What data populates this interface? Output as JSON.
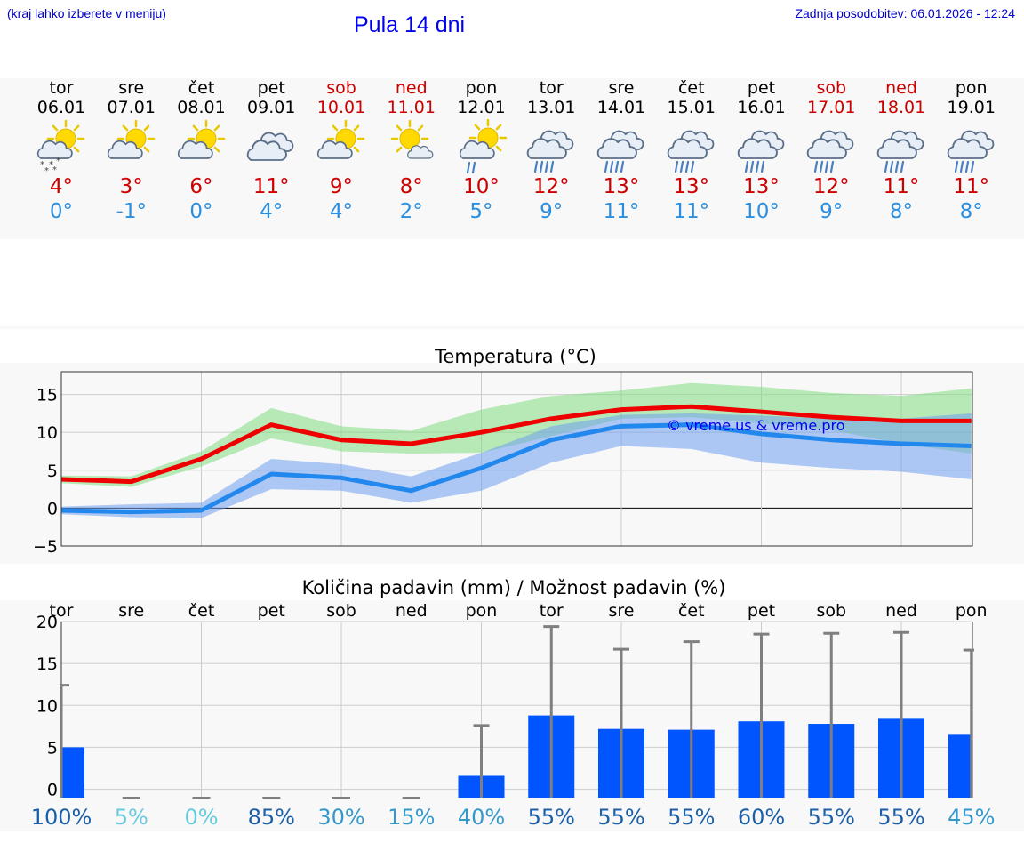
{
  "header": {
    "menu_hint": "(kraj lahko izberete v meniju)",
    "title": "Pula 14 dni",
    "updated": "Zadnja posodobitev: 06.01.2026 - 12:24"
  },
  "days": [
    {
      "name": "tor",
      "date": "06.01",
      "weekend": false,
      "icon": "sun-cloud-snow-icon",
      "tmax": "4°",
      "tmin": "0°"
    },
    {
      "name": "sre",
      "date": "07.01",
      "weekend": false,
      "icon": "sun-cloud-icon",
      "tmax": "3°",
      "tmin": "-1°"
    },
    {
      "name": "čet",
      "date": "08.01",
      "weekend": false,
      "icon": "sun-cloud-icon",
      "tmax": "6°",
      "tmin": "0°"
    },
    {
      "name": "pet",
      "date": "09.01",
      "weekend": false,
      "icon": "cloudy-icon",
      "tmax": "11°",
      "tmin": "4°"
    },
    {
      "name": "sob",
      "date": "10.01",
      "weekend": true,
      "icon": "sun-cloud-icon",
      "tmax": "9°",
      "tmin": "4°"
    },
    {
      "name": "ned",
      "date": "11.01",
      "weekend": true,
      "icon": "sun-small-cloud-icon",
      "tmax": "8°",
      "tmin": "2°"
    },
    {
      "name": "pon",
      "date": "12.01",
      "weekend": false,
      "icon": "sun-cloud-rain-icon",
      "tmax": "10°",
      "tmin": "5°"
    },
    {
      "name": "tor",
      "date": "13.01",
      "weekend": false,
      "icon": "cloud-rain-icon",
      "tmax": "12°",
      "tmin": "9°"
    },
    {
      "name": "sre",
      "date": "14.01",
      "weekend": false,
      "icon": "cloud-rain-icon",
      "tmax": "13°",
      "tmin": "11°"
    },
    {
      "name": "čet",
      "date": "15.01",
      "weekend": false,
      "icon": "cloud-rain-icon",
      "tmax": "13°",
      "tmin": "11°"
    },
    {
      "name": "pet",
      "date": "16.01",
      "weekend": false,
      "icon": "cloud-rain-icon",
      "tmax": "13°",
      "tmin": "10°"
    },
    {
      "name": "sob",
      "date": "17.01",
      "weekend": true,
      "icon": "cloud-rain-icon",
      "tmax": "12°",
      "tmin": "9°"
    },
    {
      "name": "ned",
      "date": "18.01",
      "weekend": true,
      "icon": "cloud-rain-icon",
      "tmax": "11°",
      "tmin": "8°"
    },
    {
      "name": "pon",
      "date": "19.01",
      "weekend": false,
      "icon": "cloud-rain-icon",
      "tmax": "11°",
      "tmin": "8°"
    }
  ],
  "chart_data": [
    {
      "type": "line",
      "title": "Temperatura (°C)",
      "watermark": "© vreme.us & vreme.pro",
      "ylim": [
        -5,
        18
      ],
      "yticks": [
        "15",
        "10",
        "5",
        "0",
        "−5"
      ],
      "ytick_values": [
        15,
        10,
        5,
        0,
        -5
      ],
      "categories": [
        "06.01",
        "07.01",
        "08.01",
        "09.01",
        "10.01",
        "11.01",
        "12.01",
        "13.01",
        "14.01",
        "15.01",
        "16.01",
        "17.01",
        "18.01",
        "19.01"
      ],
      "series": [
        {
          "name": "max",
          "color": "#ee0000",
          "values": [
            3.8,
            3.5,
            6.5,
            11,
            9,
            8.5,
            10,
            11.8,
            13,
            13.4,
            12.7,
            12,
            11.5,
            11.5
          ],
          "band_low": [
            3.3,
            2.8,
            5.5,
            9.2,
            7.5,
            7.2,
            7.3,
            9.5,
            11.8,
            12,
            11.2,
            10.3,
            8.5,
            7.2
          ],
          "band_high": [
            4.3,
            4.2,
            7.5,
            13.2,
            10.8,
            10.2,
            13,
            14.8,
            15.5,
            16.5,
            16,
            15.2,
            14.8,
            15.8
          ],
          "band_color": "#7fdc7f"
        },
        {
          "name": "min",
          "color": "#2288ee",
          "values": [
            -0.3,
            -0.5,
            -0.3,
            4.5,
            4,
            2.3,
            5.3,
            9,
            10.8,
            11,
            9.8,
            9,
            8.5,
            8.2
          ],
          "band_low": [
            -0.8,
            -1.2,
            -1.3,
            2.5,
            2.3,
            0.7,
            2.3,
            6,
            8.2,
            7.8,
            6,
            5.3,
            4.8,
            3.8
          ],
          "band_high": [
            0.2,
            0.5,
            0.7,
            6.5,
            5.8,
            4.2,
            7.3,
            10.8,
            12.3,
            12.5,
            12.2,
            11.8,
            11.8,
            12.5
          ],
          "band_color": "#6f9ff0"
        }
      ]
    },
    {
      "type": "bar",
      "title": "Količina padavin (mm) / Možnost padavin (%)",
      "ylim": [
        -1,
        20
      ],
      "yticks": [
        "20",
        "15",
        "10",
        "5",
        "0"
      ],
      "ytick_values": [
        20,
        15,
        10,
        5,
        0
      ],
      "categories": [
        "tor",
        "sre",
        "čet",
        "pet",
        "sob",
        "ned",
        "pon",
        "tor",
        "sre",
        "čet",
        "pet",
        "sob",
        "ned",
        "pon"
      ],
      "values": [
        5,
        0,
        0,
        0,
        0,
        0,
        1.6,
        8.8,
        7.2,
        7.1,
        8.1,
        7.8,
        8.4,
        6.6
      ],
      "max_values": [
        12.4,
        0,
        0,
        0,
        0,
        0,
        7.6,
        19.4,
        16.7,
        17.6,
        18.5,
        18.6,
        18.7,
        16.6
      ],
      "probability": [
        "100%",
        "5%",
        "0%",
        "85%",
        "30%",
        "15%",
        "40%",
        "55%",
        "55%",
        "55%",
        "60%",
        "55%",
        "55%",
        "45%"
      ],
      "probability_colors": [
        "#1a5fa8",
        "#66ccdd",
        "#66ccdd",
        "#1a5fa8",
        "#3399cc",
        "#3399cc",
        "#3399cc",
        "#1a5fa8",
        "#1a5fa8",
        "#1a5fa8",
        "#1a5fa8",
        "#1a5fa8",
        "#1a5fa8",
        "#3399cc"
      ],
      "bar_color": "#0055ff",
      "whisker_color": "#7f7f7f"
    }
  ]
}
